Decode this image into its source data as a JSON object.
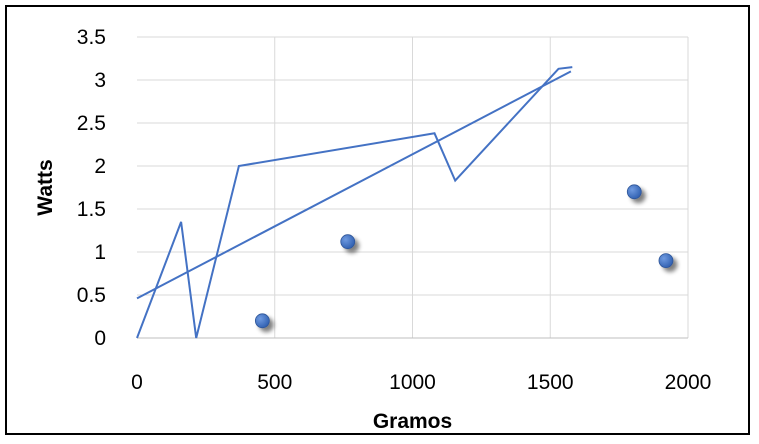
{
  "chart_data": {
    "type": "scatter",
    "title": "",
    "xlabel": "Gramos",
    "ylabel": "Watts",
    "xlim": [
      0,
      2000
    ],
    "ylim": [
      0,
      3.5
    ],
    "x_ticks": [
      "0",
      "500",
      "1000",
      "1500",
      "2000"
    ],
    "y_ticks": [
      "0",
      "0.5",
      "1",
      "1.5",
      "2",
      "2.5",
      "3",
      "3.5"
    ],
    "grid": true,
    "legend": "none",
    "series": [
      {
        "kind": "line",
        "color": "#4472c4",
        "points": [
          [
            0,
            0
          ],
          [
            160,
            1.35
          ],
          [
            215,
            0
          ],
          [
            370,
            2.0
          ],
          [
            1080,
            2.38
          ],
          [
            1155,
            1.83
          ],
          [
            1530,
            3.13
          ],
          [
            1580,
            3.15
          ]
        ]
      },
      {
        "kind": "trendline",
        "color": "#4472c4",
        "points": [
          [
            0,
            0.46
          ],
          [
            1575,
            3.1
          ]
        ]
      },
      {
        "kind": "scatter",
        "color": "#4472c4",
        "points": [
          [
            455,
            0.2
          ],
          [
            765,
            1.12
          ],
          [
            1805,
            1.7
          ],
          [
            1920,
            0.9
          ]
        ]
      }
    ]
  }
}
